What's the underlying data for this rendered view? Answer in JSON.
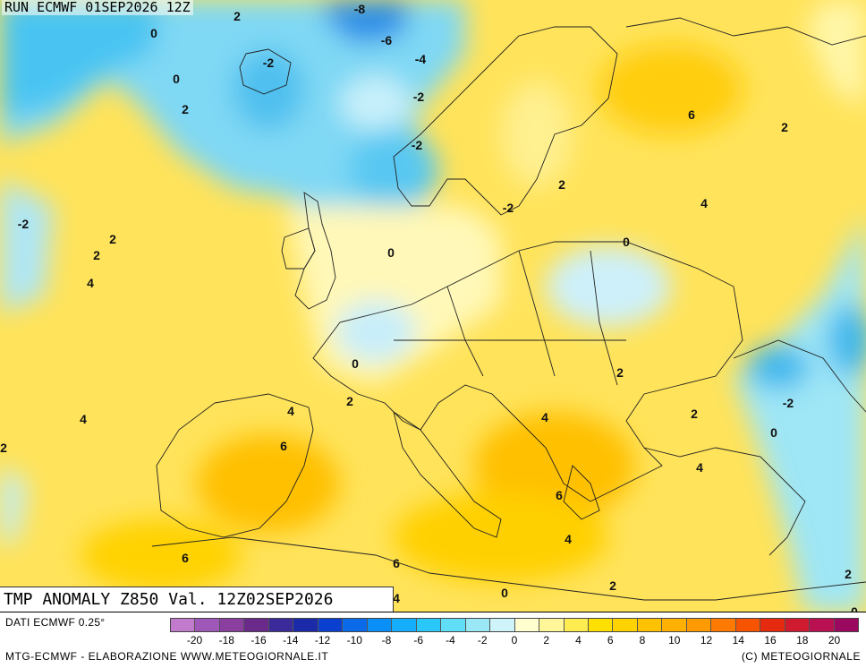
{
  "header": {
    "run_text": "RUN ECMWF 01SEP2026 12Z"
  },
  "title": {
    "text": "TMP ANOMALY Z850 Val. 12Z02SEP2026"
  },
  "footer": {
    "source": "DATI ECMWF 0.25°",
    "credit_left": "MTG-ECMWF - ELABORAZIONE WWW.METEOGIORNALE.IT",
    "credit_right": "(C) METEOGIORNALE"
  },
  "legend": {
    "colors": [
      "#c27bcc",
      "#a058b8",
      "#8a3f9f",
      "#6a2a8a",
      "#3a2a9a",
      "#1a2aa8",
      "#0a3fd0",
      "#0a6ae8",
      "#0a8ef8",
      "#14aefc",
      "#2ac8f8",
      "#60def8",
      "#9ae8f6",
      "#cef4fa",
      "#ffffd0",
      "#fff69a",
      "#ffec50",
      "#ffe000",
      "#ffd200",
      "#ffc200",
      "#ffb000",
      "#ff9a00",
      "#ff7a00",
      "#f85400",
      "#e62a10",
      "#d01a30",
      "#b81050",
      "#9a0860"
    ],
    "ticks": [
      "-20",
      "-18",
      "-16",
      "-14",
      "-12",
      "-10",
      "-8",
      "-6",
      "-4",
      "-2",
      "0",
      "2",
      "4",
      "6",
      "8",
      "10",
      "12",
      "14",
      "16",
      "18",
      "20"
    ]
  },
  "map_labels": [
    "2",
    "-8",
    "-6",
    "0",
    "-2",
    "-4",
    "0",
    "-2",
    "2",
    "-2",
    "-2",
    "6",
    "2",
    "2",
    "4",
    "-2",
    "0",
    "2",
    "2",
    "0",
    "4",
    "0",
    "0",
    "2",
    "4",
    "4",
    "-2",
    "2",
    "2",
    "4",
    "6",
    "2",
    "0",
    "4",
    "6",
    "6",
    "4",
    "6",
    "4",
    "2",
    "0",
    "2",
    "4",
    "0"
  ]
}
